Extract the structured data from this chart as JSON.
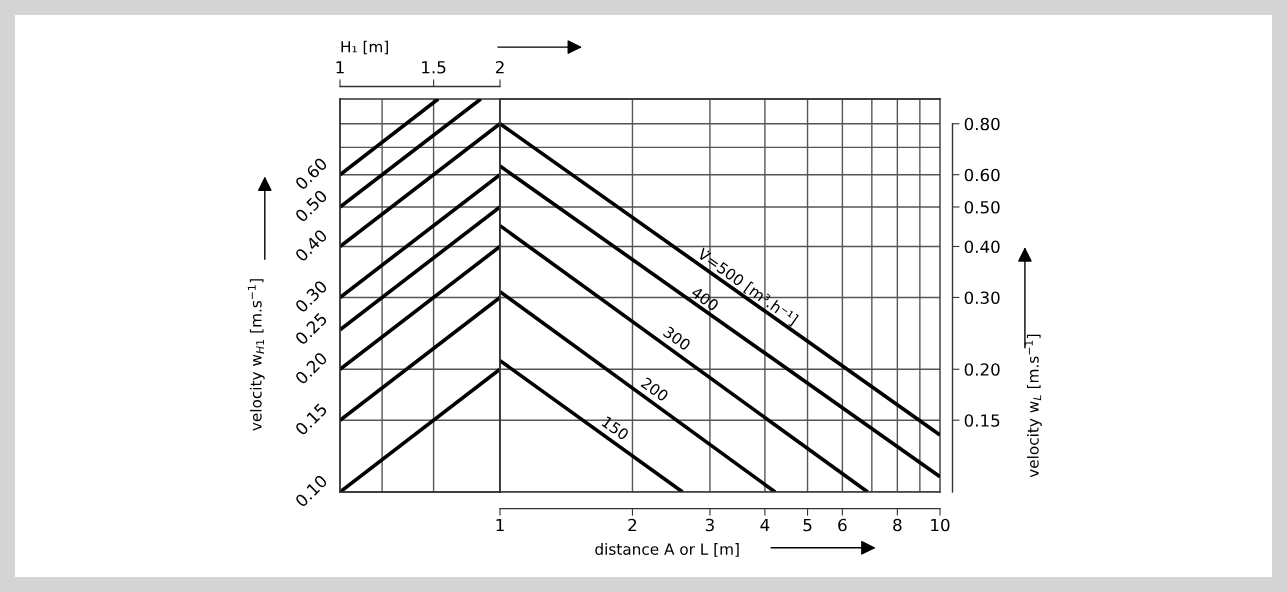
{
  "chart_data": [
    {
      "type": "line",
      "log": "xy",
      "xlabel": "H₁ [m]",
      "ylabel": "velocity w$_{H1}$ [m.s$^{−1}$]",
      "xlim": [
        1,
        2
      ],
      "xticks": [
        1,
        1.5,
        2
      ],
      "ylim": [
        0.1,
        0.92
      ],
      "yticks": [
        {
          "value": 0.1,
          "label": "0.10"
        },
        {
          "value": 0.15,
          "label": "0.15"
        },
        {
          "value": 0.2,
          "label": "0.20"
        },
        {
          "value": 0.25,
          "label": "0.25"
        },
        {
          "value": 0.3,
          "label": "0.30"
        },
        {
          "value": 0.4,
          "label": "0.40"
        },
        {
          "value": 0.5,
          "label": "0.50"
        },
        {
          "value": 0.6,
          "label": "0.60"
        }
      ],
      "ref_lines": [
        {
          "axis": "x",
          "value": 1.2
        },
        {
          "axis": "x",
          "value": 1.5
        },
        {
          "axis": "y",
          "value": 0.15
        },
        {
          "axis": "y",
          "value": 0.2
        },
        {
          "axis": "y",
          "value": 0.3
        },
        {
          "axis": "y",
          "value": 0.4
        },
        {
          "axis": "y",
          "value": 0.5
        },
        {
          "axis": "y",
          "value": 0.6
        },
        {
          "axis": "y",
          "value": 0.7
        },
        {
          "axis": "y",
          "value": 0.8
        }
      ],
      "series": [
        {
          "color": "#000000",
          "x": [
            1,
            2
          ],
          "values": [
            0.1,
            0.2
          ]
        },
        {
          "color": "#000000",
          "x": [
            1,
            2
          ],
          "values": [
            0.15,
            0.3
          ]
        },
        {
          "color": "#000000",
          "x": [
            1,
            2
          ],
          "values": [
            0.2,
            0.4
          ]
        },
        {
          "color": "#000000",
          "x": [
            1,
            2
          ],
          "values": [
            0.25,
            0.5
          ]
        },
        {
          "color": "#000000",
          "x": [
            1,
            2
          ],
          "values": [
            0.3,
            0.6
          ]
        },
        {
          "color": "#000000",
          "x": [
            1,
            2
          ],
          "values": [
            0.4,
            0.8
          ]
        },
        {
          "color": "#000000",
          "x": [
            1,
            1.84
          ],
          "values": [
            0.5,
            0.92
          ]
        },
        {
          "color": "#000000",
          "x": [
            1,
            1.53
          ],
          "values": [
            0.6,
            0.92
          ]
        }
      ]
    },
    {
      "type": "line",
      "log": "xy",
      "xlabel": "distance A or L [m]",
      "ylabel": "velocity w$_{L}$ [m.s$^{−1}$]",
      "xlim": [
        1,
        10
      ],
      "xticks": [
        1,
        2,
        3,
        4,
        5,
        6,
        8,
        10
      ],
      "ylim": [
        0.1,
        0.92
      ],
      "yticks": [
        {
          "value": 0.15,
          "label": "0.15"
        },
        {
          "value": 0.2,
          "label": "0.20"
        },
        {
          "value": 0.3,
          "label": "0.30"
        },
        {
          "value": 0.4,
          "label": "0.40"
        },
        {
          "value": 0.5,
          "label": "0.50"
        },
        {
          "value": 0.6,
          "label": "0.60"
        },
        {
          "value": 0.8,
          "label": "0.80"
        }
      ],
      "ref_lines": [
        {
          "axis": "y",
          "value": 0.1
        },
        {
          "axis": "x",
          "value": 2
        },
        {
          "axis": "x",
          "value": 3
        },
        {
          "axis": "x",
          "value": 4
        },
        {
          "axis": "x",
          "value": 5
        },
        {
          "axis": "x",
          "value": 6
        },
        {
          "axis": "x",
          "value": 7
        },
        {
          "axis": "x",
          "value": 8
        },
        {
          "axis": "x",
          "value": 9
        },
        {
          "axis": "y",
          "value": 0.15
        },
        {
          "axis": "y",
          "value": 0.2
        },
        {
          "axis": "y",
          "value": 0.3
        },
        {
          "axis": "y",
          "value": 0.4
        },
        {
          "axis": "y",
          "value": 0.5
        },
        {
          "axis": "y",
          "value": 0.6
        },
        {
          "axis": "y",
          "value": 0.7
        },
        {
          "axis": "y",
          "value": 0.8
        }
      ],
      "annotations": [
        {
          "text": "V̇=500 [m³.h⁻¹]",
          "x": 3.57,
          "y": 0.3
        },
        {
          "text": "400",
          "x": 2.85,
          "y": 0.28
        },
        {
          "text": "300",
          "x": 2.46,
          "y": 0.224
        },
        {
          "text": "200",
          "x": 2.19,
          "y": 0.168
        },
        {
          "text": "150",
          "x": 1.78,
          "y": 0.135
        }
      ],
      "series": [
        {
          "color": "#000000",
          "x": [
            1,
            10
          ],
          "values": [
            0.8,
            0.138
          ]
        },
        {
          "color": "#000000",
          "x": [
            1,
            10
          ],
          "values": [
            0.63,
            0.109
          ]
        },
        {
          "color": "#000000",
          "x": [
            1,
            6.85
          ],
          "values": [
            0.45,
            0.1
          ]
        },
        {
          "color": "#000000",
          "x": [
            1,
            4.22
          ],
          "values": [
            0.31,
            0.1
          ]
        },
        {
          "color": "#000000",
          "x": [
            1,
            2.6
          ],
          "values": [
            0.21,
            0.1
          ]
        }
      ]
    }
  ]
}
